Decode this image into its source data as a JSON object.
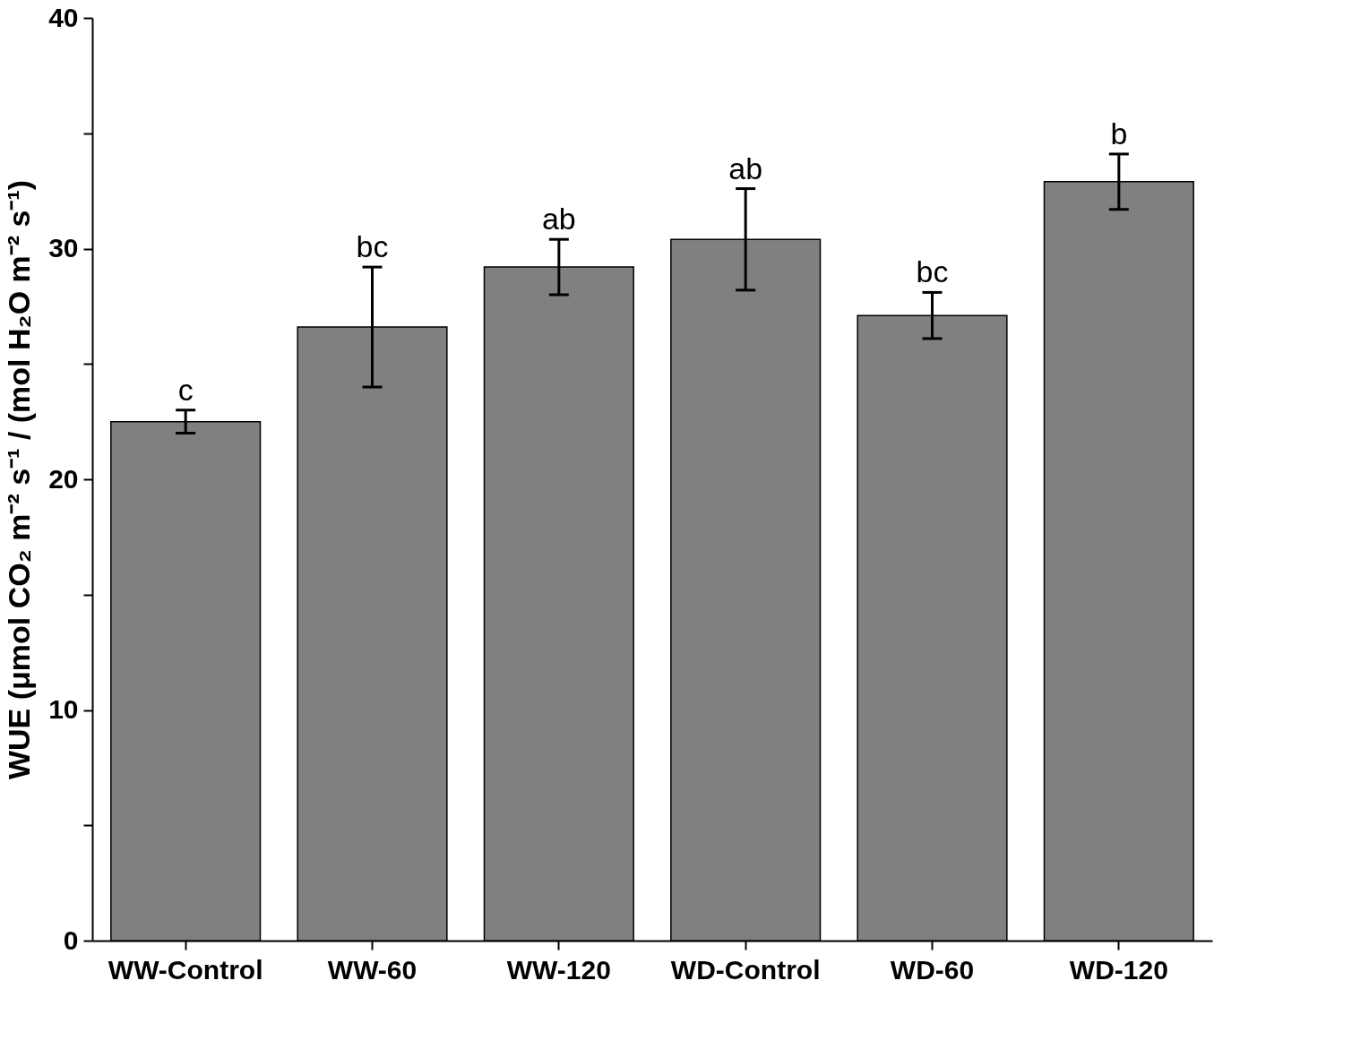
{
  "chart_data": {
    "type": "bar",
    "ylabel": "WUE (μmol CO₂ m⁻² s⁻¹ / (mol H₂O m⁻² s⁻¹)",
    "categories": [
      "WW-Control",
      "WW-60",
      "WW-120",
      "WD-Control",
      "WD-60",
      "WD-120"
    ],
    "values": [
      22.5,
      26.6,
      29.2,
      30.4,
      27.1,
      32.9
    ],
    "errors": [
      0.5,
      2.6,
      1.2,
      2.2,
      1.0,
      1.2
    ],
    "color": "#808080",
    "ylim": [
      0,
      40
    ],
    "yticks": [
      0,
      {
        "value": 5,
        "label": null
      },
      10,
      {
        "value": 15,
        "label": null
      },
      20,
      {
        "value": 25,
        "label": null
      },
      30,
      {
        "value": 35,
        "label": null
      },
      40
    ],
    "grid": false,
    "annotations": [
      {
        "text": "c",
        "x": "WW-Control",
        "y": 23.0
      },
      {
        "text": "bc",
        "x": "WW-60",
        "y": 29.2
      },
      {
        "text": "ab",
        "x": "WW-120",
        "y": 30.4
      },
      {
        "text": "ab",
        "x": "WD-Control",
        "y": 32.6
      },
      {
        "text": "bc",
        "x": "WD-60",
        "y": 28.1
      },
      {
        "text": "b",
        "x": "WD-120",
        "y": 34.1
      }
    ]
  }
}
